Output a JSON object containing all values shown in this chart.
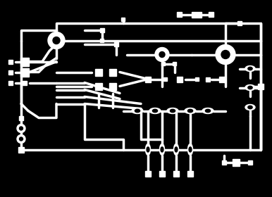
{
  "bg_color": "#000000",
  "line_color": "#ffffff",
  "lw": 2.5,
  "fig_w": 3.86,
  "fig_h": 2.8
}
